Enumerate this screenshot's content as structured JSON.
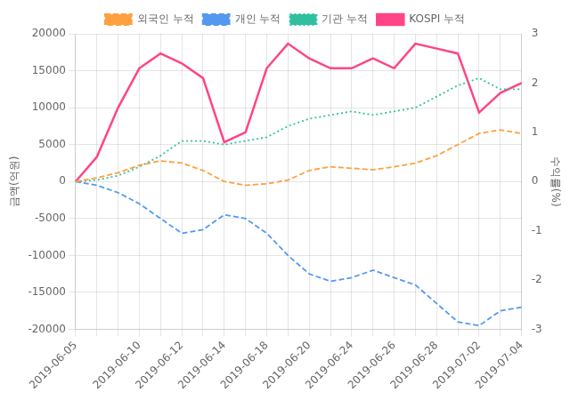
{
  "chart_data": {
    "type": "line",
    "categories": [
      "2019-06-05",
      null,
      null,
      "2019-06-10",
      null,
      "2019-06-12",
      null,
      "2019-06-14",
      null,
      "2019-06-18",
      null,
      "2019-06-20",
      null,
      "2019-06-24",
      null,
      "2019-06-26",
      null,
      "2019-06-28",
      null,
      "2019-07-02",
      null,
      "2019-07-04"
    ],
    "series": [
      {
        "name": "외국인 누적",
        "color": "#FFA040",
        "line_style": "dashed",
        "values": [
          0,
          500,
          1200,
          2200,
          2800,
          2500,
          1500,
          0,
          -500,
          -300,
          200,
          1500,
          2000,
          1800,
          1600,
          2000,
          2500,
          3500,
          5000,
          6500,
          7000,
          6500
        ]
      },
      {
        "name": "개인 누적",
        "color": "#5599EE",
        "line_style": "dashed",
        "values": [
          0,
          -500,
          -1500,
          -3000,
          -5000,
          -7000,
          -6500,
          -4500,
          -5000,
          -7000,
          -10000,
          -12500,
          -13500,
          -13000,
          -12000,
          -13000,
          -14000,
          -16500,
          -19000,
          -19500,
          -17500,
          -17000
        ]
      },
      {
        "name": "기관 누적",
        "color": "#30C0A0",
        "line_style": "dotted",
        "values": [
          0,
          200,
          800,
          2000,
          3500,
          5500,
          5500,
          5000,
          5500,
          6000,
          7500,
          8500,
          9000,
          9500,
          9000,
          9500,
          10000,
          11500,
          13000,
          14000,
          12500,
          12500
        ]
      },
      {
        "name": "KOSPI 누적",
        "color": "#FF4488",
        "line_style": "solid",
        "axis": "y2",
        "values": [
          0.0,
          0.5,
          1.5,
          2.3,
          2.6,
          2.4,
          2.1,
          0.8,
          1.0,
          2.3,
          2.8,
          2.5,
          2.3,
          2.3,
          2.5,
          2.3,
          2.8,
          2.7,
          2.6,
          1.4,
          1.8,
          2.0
        ]
      }
    ],
    "y_label": "금액(억원)",
    "y2_label": "수익률(%)",
    "ylim": [
      -20000,
      20000
    ],
    "yticks": [
      -20000,
      -15000,
      -10000,
      -5000,
      0,
      5000,
      10000,
      15000,
      20000
    ],
    "y2lim": [
      -3,
      3
    ],
    "y2ticks": [
      -3,
      -2,
      -1,
      0,
      1,
      2,
      3
    ],
    "grid": true,
    "legend": "top"
  }
}
